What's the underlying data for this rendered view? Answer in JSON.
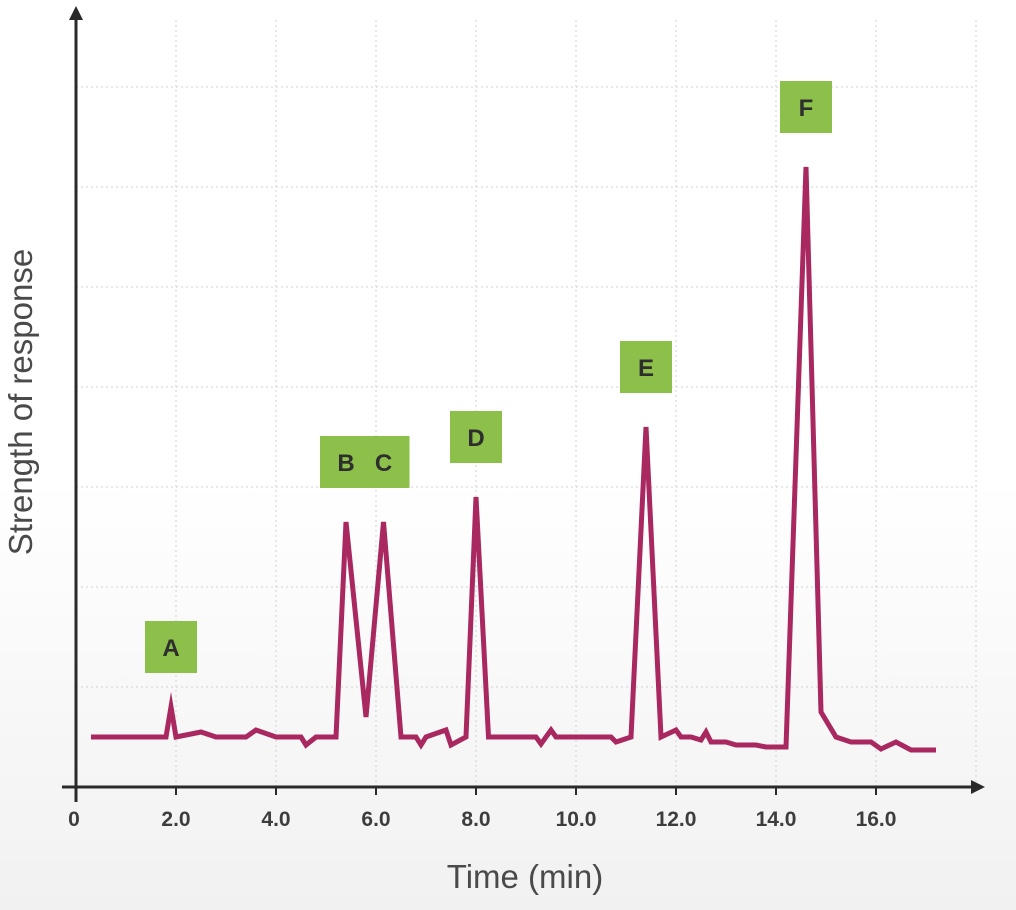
{
  "chart_data": {
    "type": "line",
    "xlabel": "Time (min)",
    "ylabel": "Strength of response",
    "xlim": [
      0,
      18
    ],
    "ylim": [
      0,
      7.8
    ],
    "origin_label": "0",
    "x_ticks": [
      "2.0",
      "4.0",
      "6.0",
      "8.0",
      "10.0",
      "12.0",
      "14.0",
      "16.0"
    ],
    "grid": true,
    "colors": {
      "line": "#a8285f",
      "label_box": "#8dc04a",
      "grid": "#d2d2d2",
      "axis": "#2a2a2a"
    },
    "series": [
      {
        "values": [
          [
            0.3,
            0.5
          ],
          [
            1.8,
            0.5
          ],
          [
            1.9,
            0.8
          ],
          [
            2.0,
            0.5
          ],
          [
            2.5,
            0.55
          ],
          [
            2.8,
            0.5
          ],
          [
            3.4,
            0.5
          ],
          [
            3.6,
            0.57
          ],
          [
            4.0,
            0.5
          ],
          [
            4.5,
            0.5
          ],
          [
            4.6,
            0.42
          ],
          [
            4.8,
            0.5
          ],
          [
            5.2,
            0.5
          ],
          [
            5.4,
            2.65
          ],
          [
            5.8,
            0.7
          ],
          [
            6.15,
            2.65
          ],
          [
            6.5,
            0.5
          ],
          [
            6.8,
            0.5
          ],
          [
            6.9,
            0.42
          ],
          [
            7.0,
            0.5
          ],
          [
            7.4,
            0.57
          ],
          [
            7.5,
            0.42
          ],
          [
            7.8,
            0.5
          ],
          [
            8.0,
            2.9
          ],
          [
            8.25,
            0.5
          ],
          [
            9.2,
            0.5
          ],
          [
            9.3,
            0.43
          ],
          [
            9.5,
            0.57
          ],
          [
            9.6,
            0.5
          ],
          [
            10.7,
            0.5
          ],
          [
            10.8,
            0.45
          ],
          [
            11.1,
            0.5
          ],
          [
            11.4,
            3.6
          ],
          [
            11.7,
            0.5
          ],
          [
            12.0,
            0.57
          ],
          [
            12.1,
            0.5
          ],
          [
            12.3,
            0.5
          ],
          [
            12.5,
            0.47
          ],
          [
            12.6,
            0.55
          ],
          [
            12.7,
            0.45
          ],
          [
            13.0,
            0.45
          ],
          [
            13.2,
            0.42
          ],
          [
            13.6,
            0.42
          ],
          [
            13.8,
            0.4
          ],
          [
            14.2,
            0.4
          ],
          [
            14.6,
            6.2
          ],
          [
            14.9,
            0.75
          ],
          [
            15.2,
            0.5
          ],
          [
            15.5,
            0.45
          ],
          [
            15.9,
            0.45
          ],
          [
            16.1,
            0.38
          ],
          [
            16.4,
            0.45
          ],
          [
            16.7,
            0.37
          ],
          [
            17.2,
            0.37
          ]
        ]
      }
    ],
    "peaks": [
      {
        "label": "A",
        "x": 1.9,
        "y": 0.8
      },
      {
        "label": "B",
        "x": 5.4,
        "y": 2.65
      },
      {
        "label": "C",
        "x": 6.15,
        "y": 2.65
      },
      {
        "label": "D",
        "x": 8.0,
        "y": 2.9
      },
      {
        "label": "E",
        "x": 11.4,
        "y": 3.6
      },
      {
        "label": "F",
        "x": 14.6,
        "y": 6.2
      }
    ]
  }
}
